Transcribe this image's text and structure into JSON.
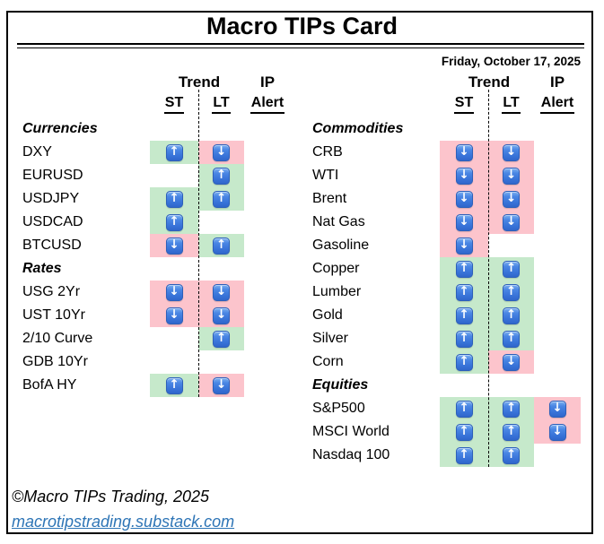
{
  "title": "Macro TIPs Card",
  "date": "Friday, October 17, 2025",
  "headers": {
    "trend": "Trend",
    "ip": "IP",
    "st": "ST",
    "lt": "LT",
    "alert": "Alert"
  },
  "icons": {
    "up": "↑",
    "down": "↓",
    "up_name": "up-arrow-icon",
    "down_name": "down-arrow-icon"
  },
  "colors": {
    "up_bg": "#C6E9CB",
    "down_bg": "#FCC4CC",
    "arrow_blue": "#3B76DA",
    "link_blue": "#2E75B6",
    "border": "#000000"
  },
  "groups": [
    {
      "id": "left",
      "rows": [
        {
          "type": "section",
          "label": "Currencies"
        },
        {
          "type": "data",
          "label": "DXY",
          "st": "up",
          "lt": "down",
          "alert": ""
        },
        {
          "type": "data",
          "label": "EURUSD",
          "st": "",
          "lt": "up",
          "alert": ""
        },
        {
          "type": "data",
          "label": "USDJPY",
          "st": "up",
          "lt": "up",
          "alert": ""
        },
        {
          "type": "data",
          "label": "USDCAD",
          "st": "up",
          "lt": "",
          "alert": ""
        },
        {
          "type": "data",
          "label": "BTCUSD",
          "st": "down",
          "lt": "up",
          "alert": ""
        },
        {
          "type": "section",
          "label": "Rates"
        },
        {
          "type": "data",
          "label": "USG 2Yr",
          "st": "down",
          "lt": "down",
          "alert": ""
        },
        {
          "type": "data",
          "label": "UST 10Yr",
          "st": "down",
          "lt": "down",
          "alert": ""
        },
        {
          "type": "data",
          "label": "2/10 Curve",
          "st": "",
          "lt": "up",
          "alert": ""
        },
        {
          "type": "data",
          "label": "GDB 10Yr",
          "st": "",
          "lt": "",
          "alert": ""
        },
        {
          "type": "data",
          "label": "BofA HY",
          "st": "up",
          "lt": "down",
          "alert": ""
        }
      ]
    },
    {
      "id": "right",
      "rows": [
        {
          "type": "section",
          "label": "Commodities"
        },
        {
          "type": "data",
          "label": "CRB",
          "st": "down",
          "lt": "down",
          "alert": ""
        },
        {
          "type": "data",
          "label": "WTI",
          "st": "down",
          "lt": "down",
          "alert": ""
        },
        {
          "type": "data",
          "label": "Brent",
          "st": "down",
          "lt": "down",
          "alert": ""
        },
        {
          "type": "data",
          "label": "Nat Gas",
          "st": "down",
          "lt": "down",
          "alert": ""
        },
        {
          "type": "data",
          "label": "Gasoline",
          "st": "down",
          "lt": "",
          "alert": ""
        },
        {
          "type": "data",
          "label": "Copper",
          "st": "up",
          "lt": "up",
          "alert": ""
        },
        {
          "type": "data",
          "label": "Lumber",
          "st": "up",
          "lt": "up",
          "alert": ""
        },
        {
          "type": "data",
          "label": "Gold",
          "st": "up",
          "lt": "up",
          "alert": ""
        },
        {
          "type": "data",
          "label": "Silver",
          "st": "up",
          "lt": "up",
          "alert": ""
        },
        {
          "type": "data",
          "label": "Corn",
          "st": "up",
          "lt": "down",
          "alert": ""
        },
        {
          "type": "section",
          "label": "Equities"
        },
        {
          "type": "data",
          "label": "S&P500",
          "st": "up",
          "lt": "up",
          "alert": "down"
        },
        {
          "type": "data",
          "label": "MSCI World",
          "st": "up",
          "lt": "up",
          "alert": "down"
        },
        {
          "type": "data",
          "label": "Nasdaq 100",
          "st": "up",
          "lt": "up",
          "alert": ""
        }
      ]
    }
  ],
  "footer": {
    "copyright": "©Macro TIPs Trading, 2025",
    "link": "macrotipstrading.substack.com"
  }
}
